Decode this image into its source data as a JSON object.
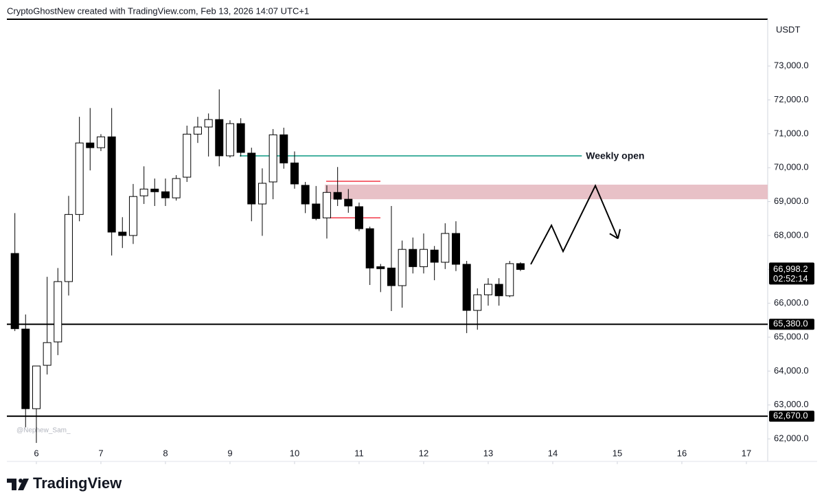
{
  "header": "CryptoGhostNew created with TradingView.com, Feb 13, 2026 14:07 UTC+1",
  "brand": "TradingView",
  "watermark": "@Nephew_Sam_",
  "chart_data": {
    "type": "candlestick",
    "currency": "USDT",
    "up_color": "#ffffff",
    "down_color": "#000000",
    "x": [
      5.667,
      5.833,
      6,
      6.167,
      6.333,
      6.5,
      6.667,
      6.833,
      7,
      7.167,
      7.333,
      7.5,
      7.667,
      7.833,
      8,
      8.167,
      8.333,
      8.5,
      8.667,
      8.833,
      9,
      9.167,
      9.333,
      9.5,
      9.667,
      9.833,
      10,
      10.167,
      10.333,
      10.5,
      10.667,
      10.833,
      11,
      11.167,
      11.333,
      11.5,
      11.667,
      11.833,
      12,
      12.167,
      12.333,
      12.5,
      12.667,
      12.833,
      13,
      13.167,
      13.333,
      13.5
    ],
    "open": [
      67470,
      65240,
      62890,
      64170,
      64860,
      66640,
      68620,
      70730,
      70590,
      70910,
      68100,
      68000,
      69170,
      69370,
      69290,
      69110,
      69720,
      70990,
      71200,
      71420,
      70350,
      71300,
      70430,
      68930,
      69580,
      70970,
      70140,
      69480,
      68930,
      68520,
      69270,
      69070,
      68850,
      68200,
      67080,
      67040,
      66520,
      67590,
      67080,
      67570,
      67210,
      68060,
      67150,
      65790,
      66250,
      66560,
      66220,
      67170
    ],
    "high": [
      68660,
      65670,
      64150,
      66780,
      67040,
      69170,
      71500,
      71760,
      70990,
      71760,
      68540,
      69520,
      70040,
      69680,
      69680,
      69780,
      71240,
      71500,
      71600,
      72310,
      71400,
      71460,
      70590,
      69980,
      71140,
      71180,
      70480,
      69580,
      69460,
      69480,
      70020,
      69370,
      68970,
      68260,
      67160,
      68870,
      67850,
      67940,
      68060,
      67690,
      68360,
      68420,
      67250,
      66440,
      66740,
      66740,
      67250,
      67210
    ],
    "low": [
      65180,
      62340,
      61880,
      63900,
      64470,
      66230,
      68420,
      69920,
      70490,
      67410,
      67630,
      67750,
      68930,
      68870,
      68870,
      69030,
      69580,
      70730,
      70330,
      70040,
      70300,
      70330,
      68420,
      67990,
      69070,
      69970,
      69380,
      68660,
      68450,
      67910,
      68870,
      68670,
      68130,
      66540,
      66330,
      65770,
      65870,
      66880,
      66880,
      66680,
      67010,
      66950,
      65120,
      65220,
      65930,
      65930,
      66180,
      66950
    ],
    "close": [
      65250,
      62890,
      64150,
      64840,
      66640,
      68620,
      70730,
      70590,
      70910,
      68100,
      68000,
      69150,
      69370,
      69290,
      69110,
      69680,
      70990,
      71200,
      71420,
      70350,
      71300,
      70450,
      68930,
      69540,
      70970,
      70140,
      69520,
      68930,
      68500,
      69270,
      69070,
      68870,
      68200,
      67040,
      67020,
      66520,
      67590,
      67080,
      67590,
      67210,
      68060,
      67150,
      65790,
      66250,
      66560,
      66220,
      67170,
      66998.2
    ],
    "xlim": [
      5.543,
      17.33
    ],
    "ylim": [
      61780,
      74380
    ],
    "xticks": [
      6,
      7,
      8,
      9,
      10,
      11,
      12,
      13,
      14,
      15,
      16,
      17
    ],
    "yticks": [
      {
        "value": 62000,
        "label": "62,000.0"
      },
      {
        "value": 63000,
        "label": "63,000.0"
      },
      {
        "value": 64000,
        "label": "64,000.0"
      },
      {
        "value": 65000,
        "label": "65,000.0"
      },
      {
        "value": 66000,
        "label": "66,000.0"
      },
      {
        "value": 67000,
        "label": "67,000.0"
      },
      {
        "value": 68000,
        "label": "68,000.0"
      },
      {
        "value": 69000,
        "label": "69,000.0"
      },
      {
        "value": 70000,
        "label": "70,000.0"
      },
      {
        "value": 71000,
        "label": "71,000.0"
      },
      {
        "value": 72000,
        "label": "72,000.0"
      },
      {
        "value": 73000,
        "label": "73,000.0"
      }
    ],
    "levels": [
      {
        "value": 65380,
        "label": "65,380.0"
      },
      {
        "value": 62670,
        "label": "62,670.0"
      }
    ],
    "current_price": {
      "value": 66998.2,
      "label": "66,998.2",
      "countdown": "02:52:14"
    },
    "weekly_open": {
      "label": "Weekly open",
      "value": 70350,
      "x": [
        9.15,
        14.45
      ],
      "color": "#089981"
    },
    "zone": {
      "low": 69070,
      "high": 69500,
      "x_start": 10.47,
      "color": "#e8c1c7"
    },
    "range_lines": [
      {
        "value": 69600,
        "x": [
          10.49,
          11.33
        ]
      },
      {
        "value": 68520,
        "x": [
          10.54,
          11.33
        ]
      }
    ],
    "range_color": "#f23645",
    "projection": {
      "x": [
        13.66,
        13.98,
        14.16,
        14.66,
        15.01
      ],
      "y": [
        67150,
        68300,
        67530,
        69470,
        67910
      ]
    }
  }
}
